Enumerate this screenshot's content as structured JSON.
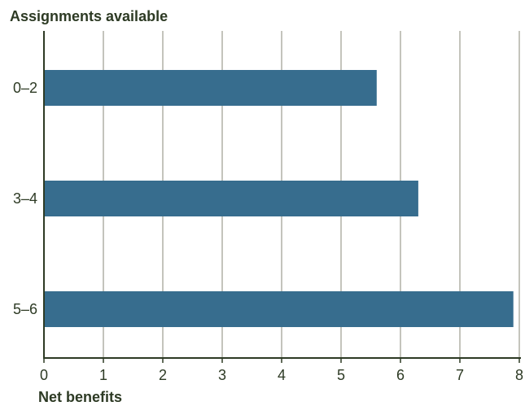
{
  "chart_data": {
    "type": "bar",
    "orientation": "horizontal",
    "ylabel": "Assignments available",
    "xlabel": "Net benefits",
    "categories": [
      "0–2",
      "3–4",
      "5–6"
    ],
    "values": [
      5.6,
      6.3,
      7.9
    ],
    "xlim": [
      0,
      8
    ],
    "xticks": [
      "0",
      "1",
      "2",
      "3",
      "4",
      "5",
      "6",
      "7",
      "8"
    ],
    "grid": "vertical",
    "bar_color": "#376d8e",
    "grid_color": "#8a8a7a",
    "axis_color": "#2d3a24"
  }
}
